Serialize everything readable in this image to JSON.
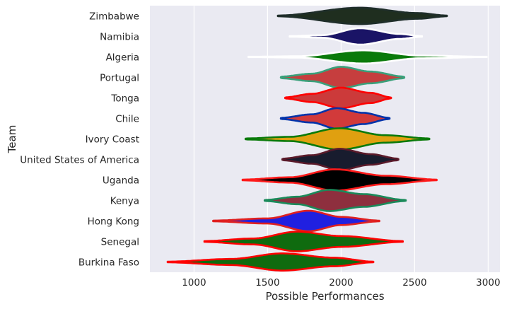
{
  "chart_data": {
    "type": "violin",
    "orientation": "horizontal",
    "title": "",
    "xlabel": "Possible Performances",
    "ylabel": "Team",
    "xlim": [
      700,
      3080
    ],
    "xticks": [
      1000,
      1500,
      2000,
      2500,
      3000
    ],
    "grid": true,
    "background": "#eaeaf2",
    "series": [
      {
        "name": "Zimbabwe",
        "min": 1570,
        "max": 2720,
        "center": 2130,
        "spread": 230,
        "halfwidth": 0.4,
        "fill": "#1f2e1f",
        "edge": "#1f2e2a",
        "tails": [
          [
            1570,
            0.05
          ],
          [
            2130,
            1.0
          ],
          [
            2520,
            0.35
          ],
          [
            2720,
            0.05
          ]
        ]
      },
      {
        "name": "Namibia",
        "min": 1650,
        "max": 2550,
        "center": 2130,
        "spread": 160,
        "halfwidth": 0.4,
        "fill": "#1a1466",
        "edge": "#ffffff",
        "tails": [
          [
            1650,
            0.03
          ],
          [
            1870,
            0.15
          ],
          [
            2130,
            1.0
          ],
          [
            2400,
            0.3
          ],
          [
            2550,
            0.03
          ]
        ]
      },
      {
        "name": "Algeria",
        "min": 1370,
        "max": 2990,
        "center": 2150,
        "spread": 200,
        "halfwidth": 0.32,
        "fill": "#0a7a0a",
        "edge": "#ffffff",
        "tails": [
          [
            1370,
            0.02
          ],
          [
            1700,
            0.1
          ],
          [
            2150,
            1.0
          ],
          [
            2550,
            0.2
          ],
          [
            2990,
            0.02
          ]
        ]
      },
      {
        "name": "Portugal",
        "min": 1590,
        "max": 2430,
        "center": 2020,
        "spread": 170,
        "halfwidth": 0.52,
        "fill": "#c63e3e",
        "edge": "#3aa07a",
        "tails": [
          [
            1590,
            0.08
          ],
          [
            1800,
            0.35
          ],
          [
            2000,
            1.0
          ],
          [
            2200,
            0.55
          ],
          [
            2430,
            0.08
          ]
        ]
      },
      {
        "name": "Tonga",
        "min": 1620,
        "max": 2340,
        "center": 2000,
        "spread": 150,
        "halfwidth": 0.5,
        "fill": "#cc3a3a",
        "edge": "#ff0000",
        "tails": [
          [
            1620,
            0.06
          ],
          [
            1800,
            0.4
          ],
          [
            2000,
            1.0
          ],
          [
            2200,
            0.5
          ],
          [
            2340,
            0.06
          ]
        ]
      },
      {
        "name": "Chile",
        "min": 1590,
        "max": 2330,
        "center": 1960,
        "spread": 160,
        "halfwidth": 0.5,
        "fill": "#d23a3a",
        "edge": "#0033aa",
        "tails": [
          [
            1590,
            0.06
          ],
          [
            1800,
            0.4
          ],
          [
            1970,
            1.0
          ],
          [
            2150,
            0.55
          ],
          [
            2330,
            0.06
          ]
        ]
      },
      {
        "name": "Ivory Coast",
        "min": 1350,
        "max": 2600,
        "center": 1990,
        "spread": 200,
        "halfwidth": 0.52,
        "fill": "#e0a010",
        "edge": "#0a7a0a",
        "tails": [
          [
            1350,
            0.05
          ],
          [
            1650,
            0.2
          ],
          [
            1990,
            1.0
          ],
          [
            2300,
            0.35
          ],
          [
            2600,
            0.05
          ]
        ]
      },
      {
        "name": "United States of America",
        "min": 1600,
        "max": 2390,
        "center": 1990,
        "spread": 160,
        "halfwidth": 0.52,
        "fill": "#181c2e",
        "edge": "#5a1a2a",
        "tails": [
          [
            1600,
            0.08
          ],
          [
            1800,
            0.4
          ],
          [
            1990,
            1.0
          ],
          [
            2200,
            0.5
          ],
          [
            2390,
            0.08
          ]
        ]
      },
      {
        "name": "Uganda",
        "min": 1330,
        "max": 2650,
        "center": 1960,
        "spread": 200,
        "halfwidth": 0.52,
        "fill": "#000000",
        "edge": "#ff1a1a",
        "tails": [
          [
            1330,
            0.04
          ],
          [
            1650,
            0.25
          ],
          [
            1960,
            1.0
          ],
          [
            2300,
            0.4
          ],
          [
            2650,
            0.04
          ]
        ]
      },
      {
        "name": "Kenya",
        "min": 1480,
        "max": 2440,
        "center": 1920,
        "spread": 190,
        "halfwidth": 0.52,
        "fill": "#8e2f3e",
        "edge": "#1a8a5a",
        "tails": [
          [
            1480,
            0.05
          ],
          [
            1700,
            0.35
          ],
          [
            1920,
            1.0
          ],
          [
            2150,
            0.6
          ],
          [
            2440,
            0.05
          ]
        ]
      },
      {
        "name": "Hong Kong",
        "min": 1130,
        "max": 2260,
        "center": 1780,
        "spread": 170,
        "halfwidth": 0.5,
        "fill": "#2020e0",
        "edge": "#e02020",
        "tails": [
          [
            1130,
            0.04
          ],
          [
            1500,
            0.25
          ],
          [
            1780,
            1.0
          ],
          [
            2000,
            0.4
          ],
          [
            2260,
            0.04
          ]
        ]
      },
      {
        "name": "Senegal",
        "min": 1070,
        "max": 2420,
        "center": 1700,
        "spread": 230,
        "halfwidth": 0.48,
        "fill": "#0f6b0f",
        "edge": "#ff0000",
        "tails": [
          [
            1070,
            0.04
          ],
          [
            1400,
            0.3
          ],
          [
            1700,
            1.0
          ],
          [
            2000,
            0.55
          ],
          [
            2420,
            0.04
          ]
        ]
      },
      {
        "name": "Burkina Faso",
        "min": 820,
        "max": 2220,
        "center": 1600,
        "spread": 260,
        "halfwidth": 0.42,
        "fill": "#0f6b0f",
        "edge": "#ff0000",
        "tails": [
          [
            820,
            0.04
          ],
          [
            1250,
            0.35
          ],
          [
            1600,
            1.0
          ],
          [
            1950,
            0.5
          ],
          [
            2220,
            0.04
          ]
        ]
      }
    ]
  }
}
